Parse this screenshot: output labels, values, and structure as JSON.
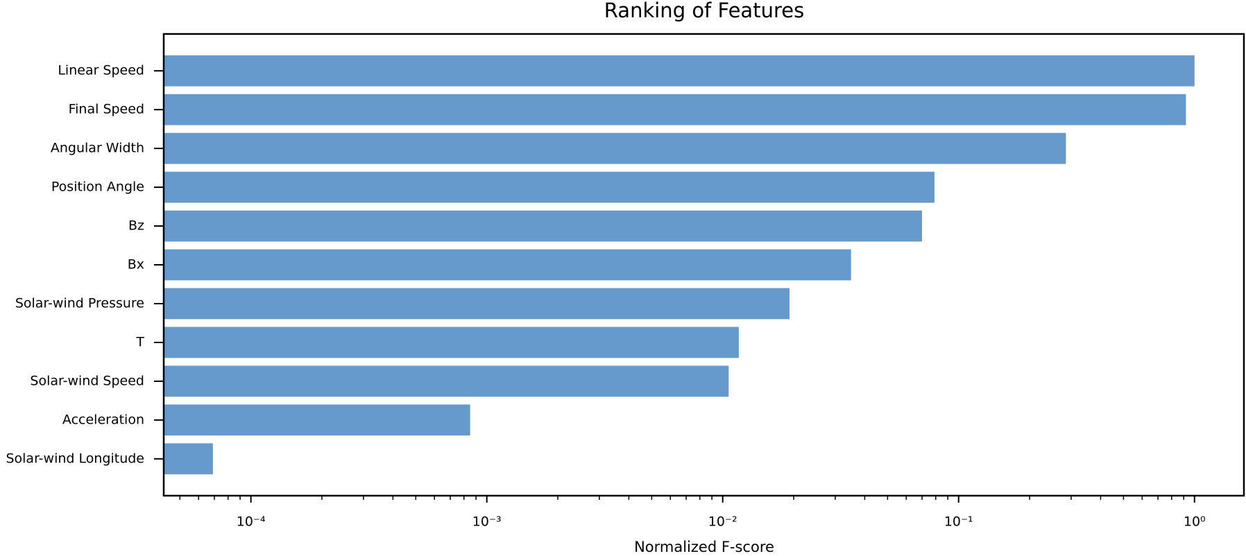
{
  "chart_data": {
    "type": "bar",
    "orientation": "horizontal",
    "title": "Ranking of Features",
    "xlabel": "Normalized F-score",
    "categories": [
      "Linear Speed",
      "Final Speed",
      "Angular  Width",
      "Position Angle",
      "Bz",
      "Bx",
      "Solar-wind Pressure",
      "T",
      "Solar-wind Speed",
      "Acceleration",
      "Solar-wind Longitude"
    ],
    "values": [
      1.0,
      0.92,
      0.285,
      0.079,
      0.07,
      0.035,
      0.0192,
      0.0117,
      0.0106,
      0.00085,
      6.9e-05
    ],
    "color": "#6699cc",
    "xscale": "log",
    "xlim": [
      4.27e-05,
      1.62
    ],
    "xticks": [
      {
        "value": 0.0001,
        "label": "10⁻⁴"
      },
      {
        "value": 0.001,
        "label": "10⁻³"
      },
      {
        "value": 0.01,
        "label": "10⁻²"
      },
      {
        "value": 0.1,
        "label": "10⁻¹"
      },
      {
        "value": 1,
        "label": "10⁰"
      }
    ],
    "xminorticks": [
      5e-05,
      6e-05,
      7e-05,
      8e-05,
      9e-05,
      0.0002,
      0.0003,
      0.0004,
      0.0005,
      0.0006,
      0.0007,
      0.0008,
      0.0009,
      0.002,
      0.003,
      0.004,
      0.005,
      0.006,
      0.007,
      0.008,
      0.009,
      0.02,
      0.03,
      0.04,
      0.05,
      0.06,
      0.07,
      0.08,
      0.09,
      0.2,
      0.3,
      0.4,
      0.5,
      0.6,
      0.7,
      0.8,
      0.9
    ],
    "grid": false
  }
}
